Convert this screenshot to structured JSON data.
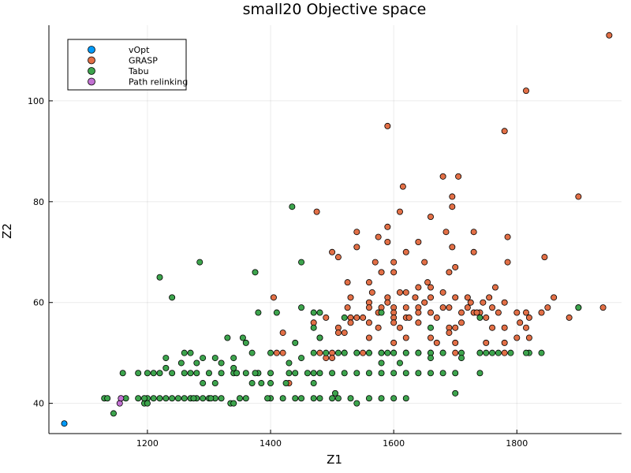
{
  "chart_data": {
    "type": "scatter",
    "title": "small20 Objective space",
    "xlabel": "Z1",
    "ylabel": "Z2",
    "xlim": [
      1040,
      1970
    ],
    "ylim": [
      34,
      115
    ],
    "x_ticks": [
      1200,
      1400,
      1600,
      1800
    ],
    "y_ticks": [
      40,
      60,
      80,
      100
    ],
    "grid": true,
    "legend_position": "top-left",
    "series": [
      {
        "name": "vOpt",
        "color": "#009AF9",
        "points": [
          [
            1065,
            36
          ]
        ]
      },
      {
        "name": "GRASP",
        "color": "#E26F46",
        "points": [
          [
            1950,
            113
          ],
          [
            1815,
            102
          ],
          [
            1590,
            95
          ],
          [
            1780,
            94
          ],
          [
            1680,
            85
          ],
          [
            1705,
            85
          ],
          [
            1615,
            83
          ],
          [
            1695,
            81
          ],
          [
            1900,
            81
          ],
          [
            1695,
            79
          ],
          [
            1475,
            78
          ],
          [
            1610,
            78
          ],
          [
            1660,
            77
          ],
          [
            1590,
            75
          ],
          [
            1540,
            74
          ],
          [
            1685,
            74
          ],
          [
            1730,
            74
          ],
          [
            1575,
            73
          ],
          [
            1785,
            73
          ],
          [
            1590,
            72
          ],
          [
            1640,
            72
          ],
          [
            1695,
            71
          ],
          [
            1540,
            71
          ],
          [
            1620,
            70
          ],
          [
            1500,
            70
          ],
          [
            1730,
            70
          ],
          [
            1510,
            69
          ],
          [
            1845,
            69
          ],
          [
            1570,
            68
          ],
          [
            1600,
            68
          ],
          [
            1650,
            68
          ],
          [
            1785,
            68
          ],
          [
            1700,
            67
          ],
          [
            1580,
            66
          ],
          [
            1600,
            66
          ],
          [
            1690,
            66
          ],
          [
            1560,
            64
          ],
          [
            1525,
            64
          ],
          [
            1655,
            64
          ],
          [
            1660,
            63
          ],
          [
            1640,
            63
          ],
          [
            1765,
            63
          ],
          [
            1610,
            62
          ],
          [
            1680,
            62
          ],
          [
            1620,
            62
          ],
          [
            1530,
            61
          ],
          [
            1590,
            61
          ],
          [
            1660,
            61
          ],
          [
            1700,
            61
          ],
          [
            1720,
            61
          ],
          [
            1745,
            60
          ],
          [
            1590,
            60
          ],
          [
            1560,
            60
          ],
          [
            1860,
            61
          ],
          [
            1405,
            61
          ],
          [
            1650,
            60
          ],
          [
            1780,
            60
          ],
          [
            1815,
            58
          ],
          [
            1850,
            59
          ],
          [
            1900,
            59
          ],
          [
            1940,
            59
          ],
          [
            1525,
            59
          ],
          [
            1560,
            59
          ],
          [
            1580,
            59
          ],
          [
            1600,
            59
          ],
          [
            1620,
            59
          ],
          [
            1640,
            59
          ],
          [
            1680,
            59
          ],
          [
            1690,
            59
          ],
          [
            1720,
            59
          ],
          [
            1760,
            59
          ],
          [
            1575,
            58
          ],
          [
            1600,
            58
          ],
          [
            1640,
            58
          ],
          [
            1660,
            58
          ],
          [
            1730,
            58
          ],
          [
            1740,
            58
          ],
          [
            1770,
            58
          ],
          [
            1800,
            58
          ],
          [
            1840,
            58
          ],
          [
            1490,
            57
          ],
          [
            1530,
            57
          ],
          [
            1550,
            57
          ],
          [
            1600,
            57
          ],
          [
            1620,
            57
          ],
          [
            1670,
            57
          ],
          [
            1710,
            56
          ],
          [
            1750,
            57
          ],
          [
            1530,
            56
          ],
          [
            1560,
            56
          ],
          [
            1600,
            56
          ],
          [
            1640,
            56
          ],
          [
            1700,
            55
          ],
          [
            1510,
            55
          ],
          [
            1575,
            55
          ],
          [
            1610,
            55
          ],
          [
            1690,
            55
          ],
          [
            1760,
            55
          ],
          [
            1780,
            55
          ],
          [
            1815,
            55
          ],
          [
            1520,
            54
          ],
          [
            1690,
            54
          ],
          [
            1420,
            54
          ],
          [
            1800,
            53
          ],
          [
            1820,
            53
          ],
          [
            1660,
            53
          ],
          [
            1620,
            53
          ],
          [
            1560,
            53
          ],
          [
            1480,
            53
          ],
          [
            1670,
            52
          ],
          [
            1750,
            52
          ],
          [
            1780,
            52
          ],
          [
            1600,
            52
          ],
          [
            1700,
            52
          ],
          [
            1410,
            50
          ],
          [
            1420,
            50
          ],
          [
            1480,
            50
          ],
          [
            1500,
            50
          ],
          [
            1520,
            50
          ],
          [
            1540,
            50
          ],
          [
            1550,
            50
          ],
          [
            1560,
            50
          ],
          [
            1580,
            50
          ],
          [
            1600,
            50
          ],
          [
            1620,
            50
          ],
          [
            1640,
            50
          ],
          [
            1660,
            50
          ],
          [
            1680,
            50
          ],
          [
            1700,
            50
          ],
          [
            1740,
            50
          ],
          [
            1780,
            50
          ],
          [
            1500,
            49
          ],
          [
            1490,
            49
          ],
          [
            1470,
            56
          ],
          [
            1510,
            54
          ],
          [
            1540,
            57
          ],
          [
            1565,
            62
          ],
          [
            1625,
            57
          ],
          [
            1635,
            61
          ],
          [
            1710,
            58
          ],
          [
            1725,
            60
          ],
          [
            1735,
            58
          ],
          [
            1755,
            61
          ],
          [
            1805,
            56
          ],
          [
            1430,
            44
          ],
          [
            1820,
            57
          ],
          [
            1885,
            57
          ]
        ]
      },
      {
        "name": "Tabu",
        "color": "#3DA44D",
        "points": [
          [
            1435,
            79
          ],
          [
            1285,
            68
          ],
          [
            1450,
            68
          ],
          [
            1220,
            65
          ],
          [
            1375,
            66
          ],
          [
            1240,
            61
          ],
          [
            1380,
            58
          ],
          [
            1410,
            58
          ],
          [
            1470,
            58
          ],
          [
            1480,
            58
          ],
          [
            1520,
            57
          ],
          [
            1580,
            58
          ],
          [
            1450,
            59
          ],
          [
            1740,
            57
          ],
          [
            1330,
            53
          ],
          [
            1355,
            53
          ],
          [
            1480,
            53
          ],
          [
            1260,
            50
          ],
          [
            1270,
            50
          ],
          [
            1290,
            49
          ],
          [
            1230,
            49
          ],
          [
            1255,
            48
          ],
          [
            1280,
            48
          ],
          [
            1310,
            49
          ],
          [
            1340,
            49
          ],
          [
            1370,
            50
          ],
          [
            1400,
            50
          ],
          [
            1430,
            48
          ],
          [
            1470,
            50
          ],
          [
            1490,
            50
          ],
          [
            1510,
            50
          ],
          [
            1520,
            50
          ],
          [
            1540,
            50
          ],
          [
            1560,
            50
          ],
          [
            1580,
            50
          ],
          [
            1600,
            50
          ],
          [
            1620,
            50
          ],
          [
            1640,
            50
          ],
          [
            1660,
            50
          ],
          [
            1680,
            50
          ],
          [
            1710,
            50
          ],
          [
            1740,
            50
          ],
          [
            1760,
            50
          ],
          [
            1790,
            50
          ],
          [
            1820,
            50
          ],
          [
            1840,
            50
          ],
          [
            1660,
            49
          ],
          [
            1320,
            48
          ],
          [
            1360,
            52
          ],
          [
            1440,
            52
          ],
          [
            1580,
            48
          ],
          [
            1610,
            48
          ],
          [
            1740,
            46
          ],
          [
            1160,
            46
          ],
          [
            1185,
            46
          ],
          [
            1200,
            46
          ],
          [
            1210,
            46
          ],
          [
            1220,
            46
          ],
          [
            1240,
            46
          ],
          [
            1260,
            46
          ],
          [
            1270,
            46
          ],
          [
            1280,
            46
          ],
          [
            1300,
            46
          ],
          [
            1320,
            46
          ],
          [
            1340,
            46
          ],
          [
            1360,
            46
          ],
          [
            1380,
            46
          ],
          [
            1400,
            46
          ],
          [
            1430,
            46
          ],
          [
            1440,
            46
          ],
          [
            1460,
            46
          ],
          [
            1470,
            46
          ],
          [
            1480,
            46
          ],
          [
            1500,
            46
          ],
          [
            1520,
            46
          ],
          [
            1540,
            46
          ],
          [
            1560,
            46
          ],
          [
            1580,
            46
          ],
          [
            1600,
            46
          ],
          [
            1620,
            46
          ],
          [
            1640,
            46
          ],
          [
            1660,
            46
          ],
          [
            1680,
            46
          ],
          [
            1700,
            46
          ],
          [
            1230,
            47
          ],
          [
            1340,
            47
          ],
          [
            1290,
            44
          ],
          [
            1310,
            44
          ],
          [
            1370,
            44
          ],
          [
            1385,
            44
          ],
          [
            1400,
            44
          ],
          [
            1425,
            44
          ],
          [
            1470,
            44
          ],
          [
            1220,
            41
          ],
          [
            1260,
            41
          ],
          [
            1290,
            41
          ],
          [
            1310,
            41
          ],
          [
            1130,
            41
          ],
          [
            1135,
            41
          ],
          [
            1165,
            41
          ],
          [
            1185,
            41
          ],
          [
            1200,
            41
          ],
          [
            1210,
            41
          ],
          [
            1230,
            41
          ],
          [
            1250,
            41
          ],
          [
            1270,
            41
          ],
          [
            1280,
            41
          ],
          [
            1300,
            41
          ],
          [
            1320,
            41
          ],
          [
            1350,
            41
          ],
          [
            1360,
            41
          ],
          [
            1400,
            41
          ],
          [
            1420,
            41
          ],
          [
            1440,
            41
          ],
          [
            1450,
            41
          ],
          [
            1470,
            41
          ],
          [
            1480,
            41
          ],
          [
            1500,
            41
          ],
          [
            1510,
            41
          ],
          [
            1530,
            41
          ],
          [
            1560,
            41
          ],
          [
            1580,
            41
          ],
          [
            1600,
            41
          ],
          [
            1620,
            41
          ],
          [
            1195,
            40
          ],
          [
            1200,
            40
          ],
          [
            1335,
            40
          ],
          [
            1340,
            40
          ],
          [
            1540,
            40
          ],
          [
            1700,
            42
          ],
          [
            1505,
            42
          ],
          [
            1145,
            38
          ],
          [
            1900,
            59
          ],
          [
            1815,
            50
          ],
          [
            1770,
            50
          ],
          [
            1750,
            50
          ],
          [
            1590,
            50
          ],
          [
            1470,
            55
          ],
          [
            1450,
            49
          ],
          [
            1375,
            46
          ],
          [
            1345,
            46
          ],
          [
            1395,
            41
          ],
          [
            1195,
            41
          ],
          [
            1240,
            41
          ],
          [
            1275,
            41
          ],
          [
            1303,
            41
          ],
          [
            1660,
            55
          ],
          [
            1710,
            49
          ]
        ]
      },
      {
        "name": "Path relinking",
        "color": "#C271D2",
        "points": [
          [
            1155,
            40
          ],
          [
            1157,
            41
          ]
        ]
      }
    ]
  }
}
